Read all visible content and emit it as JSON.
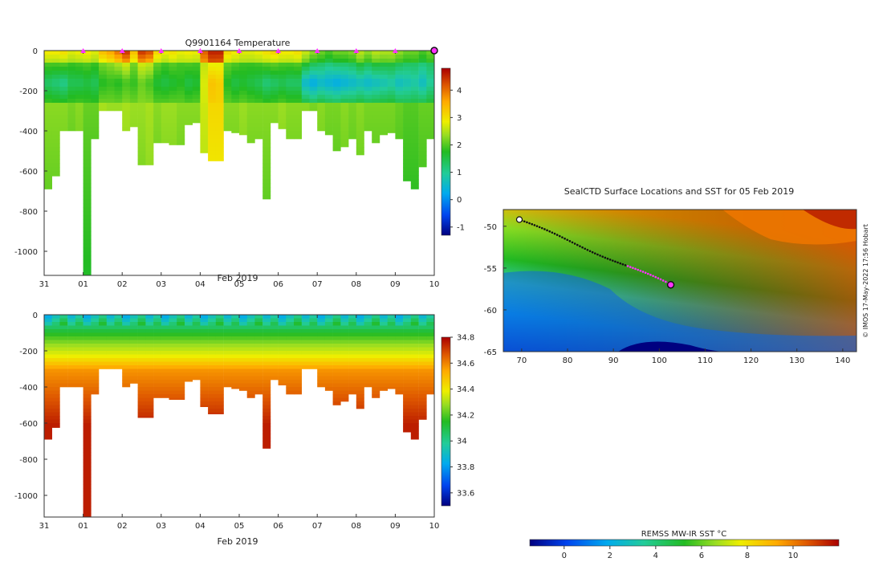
{
  "chart_data": [
    {
      "type": "heatmap",
      "title": "Q9901164  Temperature",
      "xlabel": "Feb 2019",
      "x_tick_labels": [
        "31",
        "01",
        "02",
        "03",
        "04",
        "05",
        "06",
        "07",
        "08",
        "09",
        "10"
      ],
      "y_tick_labels": [
        "0",
        "-200",
        "-400",
        "-600",
        "-800",
        "-1000"
      ],
      "ylim": [
        -1120,
        0
      ],
      "colorbar": {
        "min": -1.3,
        "max": 4.8,
        "tick_labels": [
          "4",
          "3",
          "2",
          "1",
          "0",
          "-1"
        ]
      },
      "marker_color": "#ff33ff",
      "profile_days": [
        0.1,
        0.3,
        0.5,
        0.7,
        0.9,
        1.1,
        1.3,
        1.5,
        1.7,
        1.9,
        2.1,
        2.3,
        2.5,
        2.7,
        2.9,
        3.1,
        3.3,
        3.5,
        3.7,
        3.9,
        4.1,
        4.3,
        4.5,
        4.7,
        4.9,
        5.1,
        5.3,
        5.5,
        5.7,
        5.9,
        6.1,
        6.3,
        6.5,
        6.7,
        6.9,
        7.1,
        7.3,
        7.5,
        7.7,
        7.9,
        8.1,
        8.3,
        8.5,
        8.7,
        8.9,
        9.1,
        9.3,
        9.5,
        9.7,
        9.9
      ],
      "profile_max_depth": [
        690,
        625,
        400,
        400,
        400,
        1120,
        440,
        300,
        300,
        300,
        400,
        380,
        570,
        570,
        460,
        460,
        470,
        470,
        370,
        360,
        510,
        550,
        550,
        400,
        410,
        420,
        460,
        440,
        740,
        360,
        390,
        440,
        440,
        300,
        300,
        400,
        420,
        500,
        480,
        440,
        520,
        400,
        460,
        420,
        410,
        440,
        650,
        690,
        580,
        440
      ],
      "markers_x": [
        1,
        2,
        3,
        4,
        5,
        6,
        7,
        8,
        9
      ],
      "last_profile_x": 10
    },
    {
      "type": "heatmap",
      "title": "",
      "xlabel": "Feb 2019",
      "x_tick_labels": [
        "31",
        "01",
        "02",
        "03",
        "04",
        "05",
        "06",
        "07",
        "08",
        "09",
        "10"
      ],
      "y_tick_labels": [
        "0",
        "-200",
        "-400",
        "-600",
        "-800",
        "-1000"
      ],
      "ylim": [
        -1120,
        0
      ],
      "colorbar": {
        "min": 33.5,
        "max": 34.8,
        "tick_labels": [
          "34.8",
          "34.6",
          "34.4",
          "34.2",
          "34",
          "33.8",
          "33.6"
        ]
      }
    },
    {
      "type": "heatmap",
      "title": "SealCTD Surface Locations and SST for 05 Feb 2019",
      "x_tick_labels": [
        "70",
        "80",
        "90",
        "100",
        "110",
        "120",
        "130",
        "140"
      ],
      "y_tick_labels": [
        "-50",
        "-55",
        "-60",
        "-65"
      ],
      "xlim": [
        66,
        143
      ],
      "ylim": [
        -65,
        -48
      ],
      "colorbar": {
        "label": "REMSS MW-IR SST °C",
        "min": -1.5,
        "max": 12,
        "tick_labels": [
          "0",
          "2",
          "4",
          "6",
          "8",
          "10"
        ]
      },
      "track": {
        "start": [
          69.5,
          -49.2
        ],
        "end": [
          102.5,
          -57
        ]
      },
      "credit": "© IMOS 17-May-2022 17:56 Hobart"
    }
  ]
}
